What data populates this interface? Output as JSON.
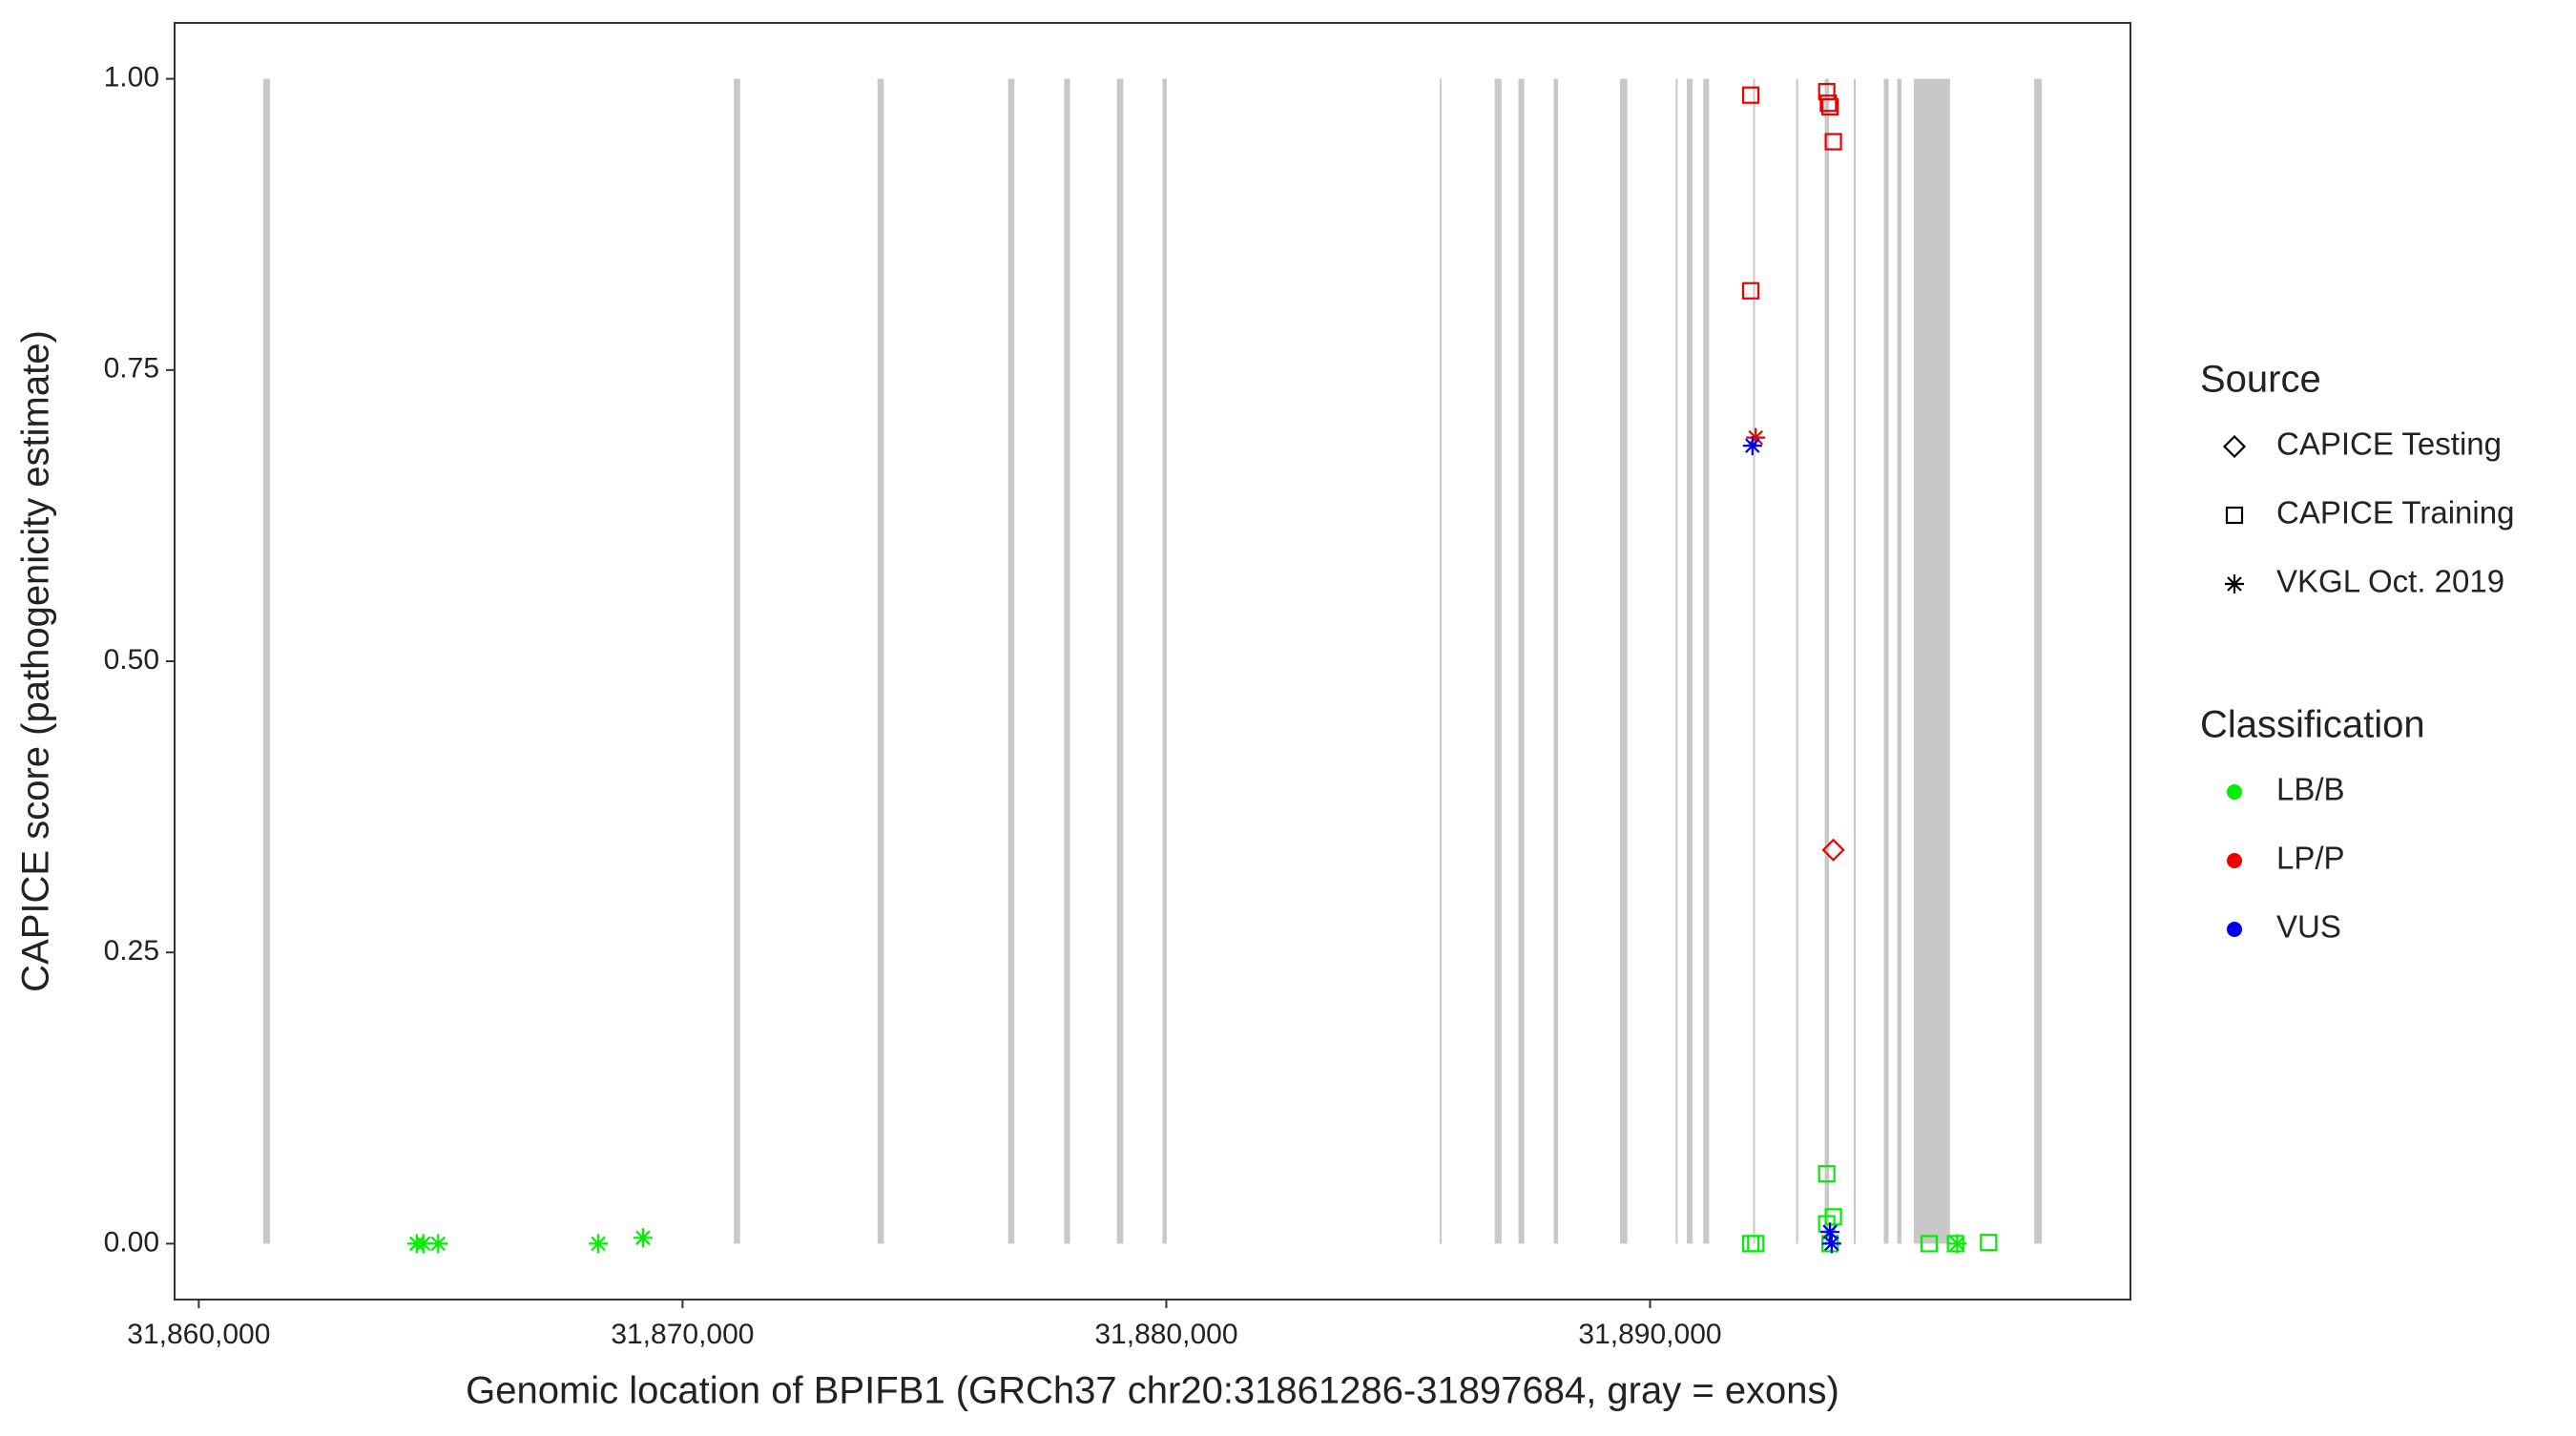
{
  "chart_data": {
    "type": "scatter",
    "x_label": "Genomic location of BPIFB1 (GRCh37 chr20:31861286-31897684, gray = exons)",
    "y_label": "CAPICE score (pathogenicity estimate)",
    "xlim": [
      31859500,
      31899930
    ],
    "ylim": [
      -0.048,
      1.048
    ],
    "xticks": [
      {
        "value": 31860000,
        "label": "31,860,000"
      },
      {
        "value": 31870000,
        "label": "31,870,000"
      },
      {
        "value": 31880000,
        "label": "31,880,000"
      },
      {
        "value": 31890000,
        "label": "31,890,000"
      }
    ],
    "yticks": [
      {
        "value": 0,
        "label": "0.00"
      },
      {
        "value": 0.25,
        "label": "0.25"
      },
      {
        "value": 0.5,
        "label": "0.50"
      },
      {
        "value": 0.75,
        "label": "0.75"
      },
      {
        "value": 1,
        "label": "1.00"
      }
    ],
    "exon_color": "#c8c8c8",
    "exons": [
      [
        31861330,
        31861470
      ],
      [
        31871060,
        31871190
      ],
      [
        31874030,
        31874160
      ],
      [
        31876730,
        31876860
      ],
      [
        31877890,
        31878010
      ],
      [
        31878980,
        31879110
      ],
      [
        31879920,
        31880010
      ],
      [
        31885650,
        31885690
      ],
      [
        31886790,
        31886930
      ],
      [
        31887280,
        31887400
      ],
      [
        31888010,
        31888100
      ],
      [
        31889380,
        31889530
      ],
      [
        31890530,
        31890570
      ],
      [
        31890760,
        31890880
      ],
      [
        31891100,
        31891220
      ],
      [
        31892130,
        31892170
      ],
      [
        31893020,
        31893060
      ],
      [
        31893610,
        31893700
      ],
      [
        31894210,
        31894250
      ],
      [
        31894830,
        31894930
      ],
      [
        31895110,
        31895200
      ],
      [
        31895450,
        31896200
      ],
      [
        31897940,
        31898100
      ]
    ],
    "source_legend": {
      "title": "Source",
      "items": [
        {
          "name": "CAPICE Testing",
          "shape": "diamond"
        },
        {
          "name": "CAPICE Training",
          "shape": "square"
        },
        {
          "name": "VKGL Oct. 2019",
          "shape": "asterisk"
        }
      ]
    },
    "classification_legend": {
      "title": "Classification",
      "items": [
        {
          "name": "LB/B",
          "color": "#00ee00"
        },
        {
          "name": "LP/P",
          "color": "#ee0000"
        },
        {
          "name": "VUS",
          "color": "#0000ee"
        }
      ]
    },
    "series": [
      {
        "source": "VKGL Oct. 2019",
        "classification": "LB/B",
        "x": [
          31864505,
          31864642,
          31864949,
          31868259,
          31869181,
          31893754,
          31896348
        ],
        "y": [
          0,
          0,
          0,
          0,
          0.005,
          0,
          0
        ]
      },
      {
        "source": "CAPICE Training",
        "classification": "LB/B",
        "x": [
          31892082,
          31892184,
          31893652,
          31893788,
          31893652,
          31893720,
          31895768,
          31896314,
          31896997
        ],
        "y": [
          0,
          0,
          0.06,
          0.023,
          0.017,
          0,
          0,
          0,
          0.001
        ]
      },
      {
        "source": "CAPICE Training",
        "classification": "LP/P",
        "x": [
          31892082,
          31892082,
          31893652,
          31893686,
          31893720,
          31893788
        ],
        "y": [
          0.986,
          0.818,
          0.989,
          0.979,
          0.976,
          0.946
        ]
      },
      {
        "source": "CAPICE Testing",
        "classification": "LP/P",
        "x": [
          31893788
        ],
        "y": [
          0.338
        ]
      },
      {
        "source": "VKGL Oct. 2019",
        "classification": "LP/P",
        "x": [
          31892184
        ],
        "y": [
          0.692
        ]
      },
      {
        "source": "VKGL Oct. 2019",
        "classification": "VUS",
        "x": [
          31892116,
          31893720,
          31893754
        ],
        "y": [
          0.685,
          0.01,
          0
        ]
      }
    ]
  }
}
